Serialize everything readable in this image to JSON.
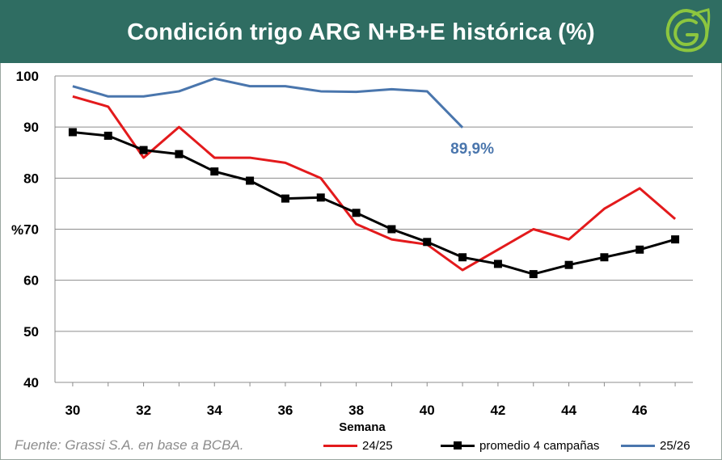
{
  "header": {
    "title": "Condición trigo ARG N+B+E histórica (%)",
    "brand_color": "#2f6d62"
  },
  "chart_data": {
    "type": "line",
    "title": "Condición trigo ARG N+B+E histórica (%)",
    "xlabel": "Semana",
    "ylabel": "%",
    "xlim": [
      30,
      47
    ],
    "ylim": [
      40,
      100
    ],
    "xticks": [
      30,
      32,
      34,
      36,
      38,
      40,
      42,
      44,
      46
    ],
    "yticks": [
      40,
      50,
      60,
      70,
      80,
      90,
      100
    ],
    "grid": true,
    "legend_position": "bottom",
    "series": [
      {
        "name": "24/25",
        "color": "#e31a1c",
        "marker": "none",
        "x": [
          30,
          31,
          32,
          33,
          34,
          35,
          36,
          37,
          38,
          39,
          40,
          41,
          42,
          43,
          44,
          45,
          46,
          47
        ],
        "values": [
          96,
          94,
          84,
          90,
          84,
          84,
          83,
          80,
          71,
          68,
          67,
          62,
          66,
          70,
          68,
          74,
          78,
          72
        ]
      },
      {
        "name": "promedio 4 campañas",
        "color": "#000000",
        "marker": "square",
        "x": [
          30,
          31,
          32,
          33,
          34,
          35,
          36,
          37,
          38,
          39,
          40,
          41,
          42,
          43,
          44,
          45,
          46,
          47
        ],
        "values": [
          89,
          88.3,
          85.5,
          84.7,
          81.3,
          79.5,
          76,
          76.2,
          73.2,
          70,
          67.5,
          64.5,
          63.2,
          61.2,
          63,
          64.5,
          66,
          68
        ]
      },
      {
        "name": "25/26",
        "color": "#4a76ad",
        "marker": "none",
        "x": [
          30,
          31,
          32,
          33,
          34,
          35,
          36,
          37,
          38,
          39,
          40,
          41
        ],
        "values": [
          98,
          96,
          96,
          97,
          99.5,
          98,
          98,
          97,
          96.9,
          97.4,
          97,
          89.9
        ]
      }
    ],
    "annotations": [
      {
        "text": "89,9%",
        "x": 41,
        "y": 89.9,
        "color": "#4a76ad"
      }
    ]
  },
  "footer": {
    "source": "Fuente: Grassi S.A. en base a BCBA."
  }
}
